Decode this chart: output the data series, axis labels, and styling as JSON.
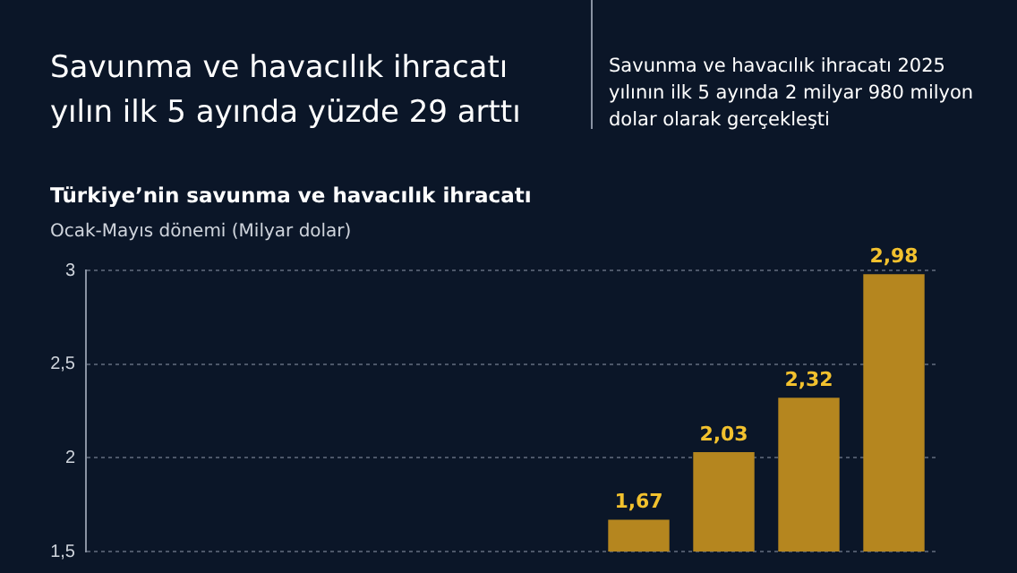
{
  "chart_data": {
    "type": "bar",
    "title": "Savunma ve havacılık ihracatı yılın ilk 5 ayında yüzde 29 arttı",
    "subtitle": "Savunma ve havacılık ihracatı 2025 yılının ilk 5 ayında 2 milyar 980 milyon dolar olarak gerçekleşti",
    "annotations": [
      "Türkiye’nin savunma ve havacılık ihracatı"
    ],
    "ylabel": "Ocak-Mayıs dönemi (Milyar dolar)",
    "categories": [
      null,
      null,
      null,
      null,
      null,
      null,
      null,
      null,
      null,
      null
    ],
    "values": [
      null,
      null,
      null,
      null,
      null,
      null,
      1.67,
      2.03,
      2.32,
      2.98
    ],
    "value_labels": [
      null,
      null,
      null,
      null,
      null,
      null,
      "1,67",
      "2,03",
      "2,32",
      "2,98"
    ],
    "color": "#b5861f",
    "ylim": [
      1.5,
      3
    ],
    "yticks": [
      {
        "value": 1.5,
        "label": "1,5"
      },
      2,
      {
        "value": 2.5,
        "label": "2,5"
      },
      3
    ],
    "grid": "y",
    "tick_labels": "y",
    "legend": false
  }
}
